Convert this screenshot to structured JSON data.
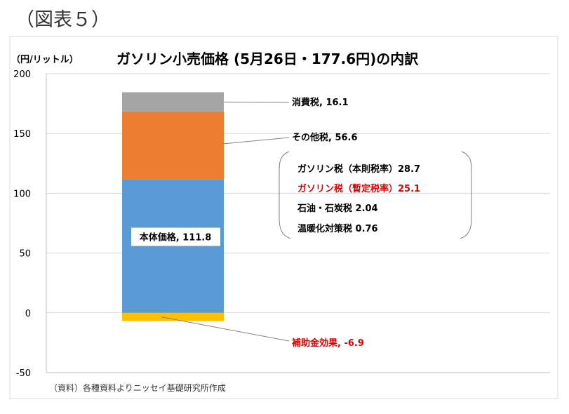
{
  "figure_label": "（図表５）",
  "chart_data": {
    "type": "bar",
    "title": "ガソリン小売価格 (5月26日・177.6円)の内訳",
    "ylabel": "（円/リットル）",
    "xlabel": "",
    "ylim": [
      -50,
      200
    ],
    "yticks": [
      200,
      150,
      100,
      50,
      0,
      -50
    ],
    "grid": true,
    "segments": [
      {
        "name": "補助金効果",
        "value": -6.9,
        "label": "補助金効果, -6.9",
        "color": "#ffc000",
        "label_color": "#e00000"
      },
      {
        "name": "本体価格",
        "value": 111.8,
        "label": "本体価格, 111.8",
        "color": "#5b9bd5",
        "label_color": "#000000"
      },
      {
        "name": "その他税",
        "value": 56.6,
        "label": "その他税, 56.6",
        "color": "#ed7d31",
        "label_color": "#000000"
      },
      {
        "name": "消費税",
        "value": 16.1,
        "label": "消費税, 16.1",
        "color": "#a5a5a5",
        "label_color": "#000000"
      }
    ],
    "breakdown_of": "その他税",
    "breakdown": [
      {
        "text": "ガソリン税（本則税率）28.7",
        "color": "#000000"
      },
      {
        "text": "ガソリン税（暫定税率）25.1",
        "color": "#e00000"
      },
      {
        "text": "石油・石炭税 2.04",
        "color": "#000000"
      },
      {
        "text": "温暖化対策税 0.76",
        "color": "#000000"
      }
    ],
    "source": "（資料）各種資料よりニッセイ基礎研究所作成"
  }
}
